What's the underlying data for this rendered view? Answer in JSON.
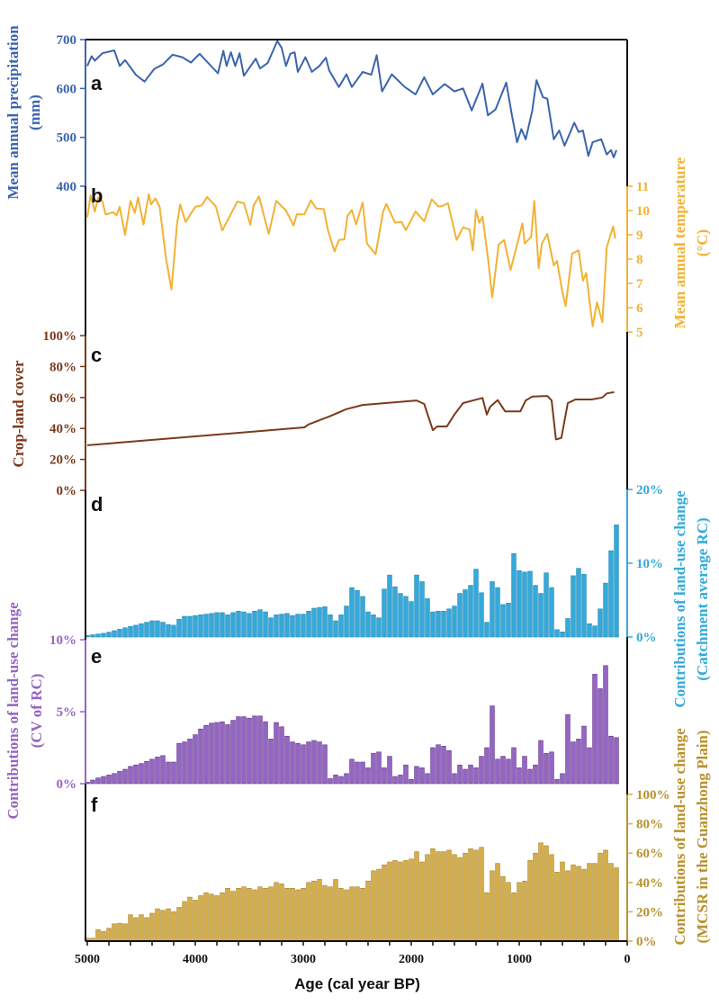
{
  "chart_data": {
    "type": "multi-panel",
    "x_axis": {
      "label": "Age (cal year BP)",
      "ticks": [
        5000,
        4000,
        3000,
        2000,
        1000,
        0
      ],
      "xlim": [
        5000,
        0
      ]
    },
    "panels": [
      {
        "letter": "a",
        "type": "line",
        "side": "left",
        "color": "#3b64ad",
        "ylabel": [
          "Mean annual precipitation",
          "(mm)"
        ],
        "ylim": [
          400,
          700
        ],
        "ytick_labels": [
          "400",
          "500",
          "600",
          "700"
        ],
        "yticks": [
          400,
          500,
          600,
          700
        ],
        "x": [
          5000,
          4960,
          4930,
          4860,
          4750,
          4700,
          4650,
          4550,
          4470,
          4380,
          4300,
          4210,
          4120,
          4040,
          3960,
          3790,
          3740,
          3710,
          3670,
          3630,
          3590,
          3550,
          3440,
          3400,
          3330,
          3240,
          3200,
          3160,
          3120,
          3080,
          3050,
          2980,
          2920,
          2850,
          2790,
          2760,
          2670,
          2600,
          2550,
          2450,
          2370,
          2320,
          2270,
          2180,
          2060,
          1960,
          1880,
          1800,
          1690,
          1600,
          1520,
          1440,
          1340,
          1290,
          1220,
          1120,
          1070,
          1020,
          980,
          940,
          880,
          840,
          780,
          740,
          680,
          630,
          580,
          490,
          450,
          410,
          360,
          320,
          240,
          190,
          150,
          125,
          100
        ],
        "y": [
          646,
          666,
          657,
          672,
          678,
          646,
          658,
          628,
          614,
          640,
          649,
          669,
          664,
          653,
          671,
          631,
          677,
          646,
          674,
          646,
          672,
          626,
          661,
          641,
          652,
          697,
          683,
          646,
          671,
          674,
          634,
          664,
          634,
          646,
          663,
          637,
          603,
          629,
          603,
          634,
          628,
          668,
          594,
          629,
          603,
          588,
          623,
          588,
          609,
          594,
          600,
          555,
          610,
          545,
          557,
          612,
          548,
          490,
          517,
          496,
          554,
          617,
          582,
          579,
          496,
          514,
          483,
          530,
          511,
          514,
          462,
          490,
          496,
          465,
          474,
          459,
          474
        ]
      },
      {
        "letter": "b",
        "type": "line",
        "side": "right",
        "color": "#f2b233",
        "ylabel": [
          "Mean annual temperature",
          "(°C)"
        ],
        "ylim": [
          5,
          11
        ],
        "ytick_labels": [
          "5",
          "6",
          "7",
          "8",
          "9",
          "10",
          "11"
        ],
        "yticks": [
          5,
          6,
          7,
          8,
          9,
          10,
          11
        ],
        "x": [
          5000,
          4970,
          4930,
          4900,
          4860,
          4830,
          4760,
          4730,
          4700,
          4650,
          4600,
          4560,
          4530,
          4480,
          4430,
          4410,
          4370,
          4330,
          4270,
          4220,
          4170,
          4140,
          4090,
          4000,
          3940,
          3890,
          3810,
          3750,
          3610,
          3550,
          3490,
          3460,
          3410,
          3320,
          3250,
          3160,
          3090,
          3060,
          2990,
          2930,
          2880,
          2810,
          2770,
          2710,
          2670,
          2620,
          2590,
          2550,
          2510,
          2450,
          2410,
          2330,
          2260,
          2230,
          2150,
          2090,
          2050,
          1960,
          1880,
          1810,
          1750,
          1720,
          1660,
          1580,
          1520,
          1460,
          1430,
          1400,
          1370,
          1340,
          1290,
          1250,
          1190,
          1140,
          1080,
          1030,
          970,
          950,
          890,
          860,
          820,
          790,
          740,
          680,
          650,
          600,
          570,
          510,
          450,
          410,
          380,
          320,
          280,
          230,
          190,
          130,
          110
        ],
        "y": [
          9.72,
          10.62,
          9.96,
          10.54,
          10.37,
          9.84,
          9.93,
          9.8,
          10.15,
          9.0,
          10.4,
          9.9,
          10.54,
          9.43,
          10.67,
          10.25,
          10.5,
          10.15,
          7.99,
          6.75,
          9.41,
          10.25,
          9.53,
          10.15,
          10.21,
          10.56,
          10.17,
          9.18,
          10.37,
          10.3,
          9.41,
          10.21,
          10.58,
          9.04,
          10.4,
          10.0,
          9.38,
          9.84,
          9.84,
          10.42,
          10.09,
          10.06,
          9.16,
          8.32,
          8.79,
          8.81,
          9.78,
          10.02,
          9.43,
          10.33,
          8.64,
          8.2,
          9.96,
          10.27,
          9.5,
          9.53,
          9.19,
          9.96,
          9.56,
          10.46,
          10.17,
          10.17,
          10.3,
          8.79,
          9.31,
          9.22,
          8.36,
          10.02,
          9.5,
          9.75,
          8.07,
          6.42,
          8.6,
          8.79,
          7.56,
          8.42,
          9.47,
          8.64,
          8.91,
          10.4,
          7.62,
          8.64,
          9.04,
          7.74,
          7.93,
          6.63,
          6.07,
          8.23,
          8.36,
          7.12,
          7.43,
          5.23,
          6.22,
          5.4,
          8.48,
          9.35,
          8.85
        ]
      },
      {
        "letter": "c",
        "type": "line",
        "side": "left",
        "color": "#7a3a1c",
        "ylabel": [
          "Crop-land cover"
        ],
        "ylim": [
          0,
          100
        ],
        "ytick_labels": [
          "0%",
          "20%",
          "40%",
          "60%",
          "80%",
          "100%"
        ],
        "yticks": [
          0,
          20,
          40,
          60,
          80,
          100
        ],
        "x": [
          5000,
          2990,
          2950,
          2750,
          2600,
          2450,
          1950,
          1880,
          1800,
          1760,
          1670,
          1600,
          1520,
          1340,
          1300,
          1270,
          1200,
          1130,
          990,
          940,
          880,
          740,
          700,
          660,
          610,
          550,
          480,
          330,
          230,
          190,
          120
        ],
        "y": [
          29.1,
          40.7,
          42.6,
          48,
          52.5,
          55.2,
          58.1,
          55.8,
          38.9,
          41.3,
          41.3,
          49,
          56.4,
          59.7,
          49,
          53.9,
          58.3,
          51,
          51,
          58.1,
          60.6,
          61,
          58.1,
          32.9,
          33.9,
          56.4,
          58.7,
          58.7,
          60,
          62.6,
          63.5
        ]
      },
      {
        "letter": "d",
        "type": "bar",
        "side": "right",
        "color": "#35a9d9",
        "edge": "#1f86b8",
        "ylabel": [
          "Contributions of land-use change",
          "(Catchment average RC)"
        ],
        "ylim": [
          0,
          20
        ],
        "ytick_labels": [
          "0%",
          "10%",
          "20%"
        ],
        "yticks": [
          0,
          10,
          20
        ],
        "x": [
          5000,
          4950,
          4900,
          4850,
          4800,
          4750,
          4700,
          4650,
          4600,
          4550,
          4500,
          4450,
          4400,
          4350,
          4300,
          4250,
          4200,
          4150,
          4100,
          4050,
          4000,
          3950,
          3900,
          3850,
          3800,
          3750,
          3700,
          3650,
          3600,
          3550,
          3500,
          3450,
          3400,
          3350,
          3300,
          3250,
          3200,
          3150,
          3100,
          3050,
          3000,
          2950,
          2900,
          2850,
          2800,
          2750,
          2700,
          2650,
          2600,
          2550,
          2500,
          2450,
          2400,
          2350,
          2300,
          2250,
          2200,
          2150,
          2100,
          2050,
          2000,
          1950,
          1900,
          1850,
          1800,
          1750,
          1700,
          1650,
          1600,
          1550,
          1500,
          1450,
          1400,
          1350,
          1300,
          1250,
          1200,
          1150,
          1100,
          1050,
          1000,
          950,
          900,
          850,
          800,
          750,
          700,
          650,
          600,
          550,
          500,
          450,
          400,
          350,
          300,
          250,
          200,
          150,
          100
        ],
        "y": [
          0.2,
          0.3,
          0.4,
          0.5,
          0.65,
          0.85,
          1.05,
          1.25,
          1.45,
          1.6,
          1.8,
          2.0,
          2.2,
          2.2,
          2.0,
          1.7,
          1.6,
          2.4,
          2.8,
          2.8,
          2.9,
          3.0,
          3.1,
          3.2,
          3.3,
          3.3,
          3.0,
          3.3,
          3.5,
          3.4,
          3.2,
          3.5,
          3.7,
          3.4,
          2.6,
          3.0,
          3.1,
          3.2,
          2.9,
          3.1,
          3.1,
          3.5,
          3.9,
          4.0,
          4.1,
          3.0,
          2.2,
          3.0,
          4.2,
          6.7,
          6.3,
          5.5,
          3.4,
          3.0,
          2.6,
          6.5,
          8.4,
          6.8,
          5.9,
          5.5,
          4.8,
          8.4,
          7.5,
          5.2,
          3.4,
          3.5,
          3.5,
          3.8,
          4.2,
          5.9,
          6.4,
          7.0,
          9.2,
          6.0,
          2.0,
          7.5,
          6.7,
          4.4,
          4.6,
          11.3,
          9.0,
          8.8,
          8.9,
          7.0,
          5.9,
          8.7,
          6.7,
          1.0,
          0.7,
          2.5,
          8.3,
          9.3,
          8.5,
          1.8,
          1.5,
          3.8,
          7.3,
          11.7,
          15.2
        ]
      },
      {
        "letter": "e",
        "type": "bar",
        "side": "left",
        "color": "#9466c2",
        "edge": "#5e2f8a",
        "ylabel": [
          "Contributions of land-use change",
          "(CV of RC)"
        ],
        "ylim": [
          0,
          10
        ],
        "ytick_labels": [
          "0%",
          "5%",
          "10%"
        ],
        "yticks": [
          0,
          5,
          10
        ],
        "x": [
          5000,
          4950,
          4900,
          4850,
          4800,
          4750,
          4700,
          4650,
          4600,
          4550,
          4500,
          4450,
          4400,
          4350,
          4300,
          4250,
          4200,
          4150,
          4100,
          4050,
          4000,
          3950,
          3900,
          3850,
          3800,
          3750,
          3700,
          3650,
          3600,
          3550,
          3500,
          3450,
          3400,
          3350,
          3300,
          3250,
          3200,
          3150,
          3100,
          3050,
          3000,
          2950,
          2900,
          2850,
          2800,
          2750,
          2700,
          2650,
          2600,
          2550,
          2500,
          2450,
          2400,
          2350,
          2300,
          2250,
          2200,
          2150,
          2100,
          2050,
          2000,
          1950,
          1900,
          1850,
          1800,
          1750,
          1700,
          1650,
          1600,
          1550,
          1500,
          1450,
          1400,
          1350,
          1300,
          1250,
          1200,
          1150,
          1100,
          1050,
          1000,
          950,
          900,
          850,
          800,
          750,
          700,
          650,
          600,
          550,
          500,
          450,
          400,
          350,
          300,
          250,
          200,
          150,
          100
        ],
        "y": [
          0.1,
          0.25,
          0.4,
          0.5,
          0.6,
          0.7,
          0.85,
          1.0,
          1.2,
          1.3,
          1.4,
          1.55,
          1.7,
          1.85,
          1.95,
          1.5,
          1.5,
          2.8,
          2.9,
          3.1,
          3.4,
          3.8,
          4.05,
          4.2,
          4.25,
          4.3,
          4.1,
          4.4,
          4.65,
          4.65,
          4.55,
          4.7,
          4.7,
          4.3,
          3.1,
          4.25,
          3.95,
          3.3,
          2.9,
          2.8,
          2.7,
          2.9,
          3.0,
          2.9,
          2.7,
          0.35,
          0.6,
          0.5,
          0.7,
          1.7,
          1.5,
          1.5,
          1.1,
          2.1,
          2.2,
          1.1,
          1.9,
          0.5,
          0.6,
          1.3,
          0.3,
          1.2,
          1.1,
          0.7,
          2.5,
          2.7,
          2.6,
          2.3,
          0.7,
          1.3,
          1.0,
          1.3,
          1.1,
          1.9,
          2.5,
          5.4,
          1.7,
          1.9,
          1.7,
          2.5,
          1.1,
          1.9,
          1.0,
          1.3,
          3.0,
          2.1,
          2.2,
          0.3,
          0.7,
          4.8,
          2.9,
          3.1,
          4.0,
          2.5,
          7.6,
          6.6,
          8.2,
          3.3,
          3.2
        ]
      },
      {
        "letter": "f",
        "type": "bar",
        "side": "right",
        "color": "#d4ae4c",
        "edge": "#a98324",
        "ylabel": [
          "Contributions of land-use change",
          "(MCSR in the Guanzhong Plain)"
        ],
        "ylim": [
          0,
          100
        ],
        "ytick_labels": [
          "0%",
          "20%",
          "40%",
          "60%",
          "80%",
          "100%"
        ],
        "yticks": [
          0,
          20,
          40,
          60,
          80,
          100
        ],
        "x": [
          5000,
          4950,
          4900,
          4850,
          4800,
          4750,
          4700,
          4650,
          4600,
          4550,
          4500,
          4450,
          4400,
          4350,
          4300,
          4250,
          4200,
          4150,
          4100,
          4050,
          4000,
          3950,
          3900,
          3850,
          3800,
          3750,
          3700,
          3650,
          3600,
          3550,
          3500,
          3450,
          3400,
          3350,
          3300,
          3250,
          3200,
          3150,
          3100,
          3050,
          3000,
          2950,
          2900,
          2850,
          2800,
          2750,
          2700,
          2650,
          2600,
          2550,
          2500,
          2450,
          2400,
          2350,
          2300,
          2250,
          2200,
          2150,
          2100,
          2050,
          2000,
          1950,
          1900,
          1850,
          1800,
          1750,
          1700,
          1650,
          1600,
          1550,
          1500,
          1450,
          1400,
          1350,
          1300,
          1250,
          1200,
          1150,
          1100,
          1050,
          1000,
          950,
          900,
          850,
          800,
          750,
          700,
          650,
          600,
          550,
          500,
          450,
          400,
          350,
          300,
          250,
          200,
          150,
          100
        ],
        "y": [
          2,
          2,
          7.8,
          6.7,
          8.8,
          11.8,
          12.2,
          11.8,
          18,
          16,
          18,
          16,
          19,
          22,
          21,
          22,
          20,
          23,
          27,
          30,
          28,
          31,
          33,
          32,
          31,
          33,
          36,
          34,
          36,
          37,
          36,
          35,
          37,
          36,
          37,
          40,
          39,
          36,
          36,
          35,
          36,
          40,
          41,
          42,
          38,
          37,
          42,
          36,
          35,
          37,
          37,
          36,
          41,
          48,
          49,
          52,
          54,
          55,
          54,
          55,
          56,
          61,
          54,
          59,
          63,
          61,
          61,
          62,
          59,
          57,
          60,
          63,
          62,
          64,
          33,
          48,
          53,
          44,
          40,
          33,
          40,
          41,
          55,
          60,
          67,
          65,
          59,
          47,
          54,
          48,
          52,
          51,
          49,
          53,
          53,
          60,
          62,
          53,
          50
        ]
      }
    ]
  }
}
